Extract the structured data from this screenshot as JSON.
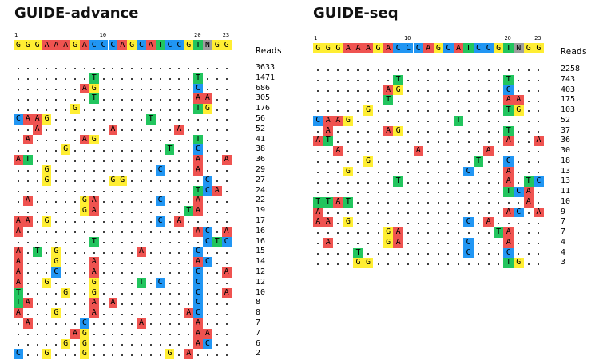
{
  "colors": {
    "A": "#ef5350",
    "C": "#2196f3",
    "G": "#ffee33",
    "T": "#22c55e",
    "N": "#9e9e9e"
  },
  "reference": "GGGAAAGACCCAGCATCCGTNGG",
  "ruler": [
    "1",
    "10",
    "20",
    "23"
  ],
  "reads_label": "Reads",
  "panels": [
    {
      "title": "GUIDE-advance",
      "rows": [
        {
          "reads": "3633",
          "muts": []
        },
        {
          "reads": "1471",
          "muts": [
            [
              8,
              "T"
            ],
            [
              19,
              "T"
            ]
          ]
        },
        {
          "reads": "686",
          "muts": [
            [
              7,
              "A"
            ],
            [
              8,
              "G"
            ],
            [
              19,
              "C"
            ]
          ]
        },
        {
          "reads": "305",
          "muts": [
            [
              8,
              "T"
            ],
            [
              19,
              "A"
            ],
            [
              20,
              "A"
            ]
          ]
        },
        {
          "reads": "176",
          "muts": [
            [
              6,
              "G"
            ],
            [
              19,
              "T"
            ],
            [
              20,
              "G"
            ]
          ]
        },
        {
          "reads": "56",
          "muts": [
            [
              0,
              "C"
            ],
            [
              1,
              "A"
            ],
            [
              2,
              "A"
            ],
            [
              3,
              "G"
            ],
            [
              14,
              "T"
            ]
          ]
        },
        {
          "reads": "52",
          "muts": [
            [
              2,
              "A"
            ],
            [
              10,
              "A"
            ],
            [
              17,
              "A"
            ]
          ]
        },
        {
          "reads": "41",
          "muts": [
            [
              1,
              "A"
            ],
            [
              7,
              "A"
            ],
            [
              8,
              "G"
            ],
            [
              19,
              "T"
            ]
          ]
        },
        {
          "reads": "38",
          "muts": [
            [
              5,
              "G"
            ],
            [
              16,
              "T"
            ],
            [
              19,
              "C"
            ]
          ]
        },
        {
          "reads": "36",
          "muts": [
            [
              0,
              "A"
            ],
            [
              1,
              "T"
            ],
            [
              19,
              "A"
            ],
            [
              22,
              "A"
            ]
          ]
        },
        {
          "reads": "29",
          "muts": [
            [
              3,
              "G"
            ],
            [
              15,
              "C"
            ],
            [
              19,
              "A"
            ]
          ]
        },
        {
          "reads": "27",
          "muts": [
            [
              3,
              "G"
            ],
            [
              10,
              "G"
            ],
            [
              11,
              "G"
            ],
            [
              20,
              "C"
            ]
          ]
        },
        {
          "reads": "24",
          "muts": [
            [
              19,
              "T"
            ],
            [
              20,
              "C"
            ],
            [
              21,
              "A"
            ]
          ]
        },
        {
          "reads": "22",
          "muts": [
            [
              1,
              "A"
            ],
            [
              7,
              "G"
            ],
            [
              8,
              "A"
            ],
            [
              15,
              "C"
            ],
            [
              19,
              "A"
            ]
          ]
        },
        {
          "reads": "19",
          "muts": [
            [
              7,
              "G"
            ],
            [
              8,
              "A"
            ],
            [
              18,
              "T"
            ],
            [
              19,
              "A"
            ]
          ]
        },
        {
          "reads": "17",
          "muts": [
            [
              0,
              "A"
            ],
            [
              1,
              "A"
            ],
            [
              3,
              "G"
            ],
            [
              15,
              "C"
            ],
            [
              17,
              "A"
            ]
          ]
        },
        {
          "reads": "16",
          "muts": [
            [
              0,
              "A"
            ],
            [
              19,
              "A"
            ],
            [
              20,
              "C"
            ],
            [
              22,
              "A"
            ]
          ]
        },
        {
          "reads": "16",
          "muts": [
            [
              8,
              "T"
            ],
            [
              20,
              "C"
            ],
            [
              21,
              "T"
            ],
            [
              22,
              "C"
            ]
          ]
        },
        {
          "reads": "15",
          "muts": [
            [
              0,
              "A"
            ],
            [
              2,
              "T"
            ],
            [
              4,
              "G"
            ],
            [
              13,
              "A"
            ],
            [
              19,
              "C"
            ]
          ]
        },
        {
          "reads": "14",
          "muts": [
            [
              0,
              "A"
            ],
            [
              4,
              "G"
            ],
            [
              8,
              "A"
            ],
            [
              19,
              "A"
            ],
            [
              20,
              "C"
            ]
          ]
        },
        {
          "reads": "12",
          "muts": [
            [
              0,
              "A"
            ],
            [
              4,
              "C"
            ],
            [
              8,
              "A"
            ],
            [
              19,
              "C"
            ],
            [
              22,
              "A"
            ]
          ]
        },
        {
          "reads": "12",
          "muts": [
            [
              0,
              "A"
            ],
            [
              3,
              "G"
            ],
            [
              8,
              "G"
            ],
            [
              13,
              "T"
            ],
            [
              15,
              "C"
            ],
            [
              19,
              "C"
            ]
          ]
        },
        {
          "reads": "10",
          "muts": [
            [
              0,
              "T"
            ],
            [
              5,
              "G"
            ],
            [
              8,
              "G"
            ],
            [
              19,
              "C"
            ],
            [
              22,
              "A"
            ]
          ]
        },
        {
          "reads": "8",
          "muts": [
            [
              0,
              "T"
            ],
            [
              1,
              "A"
            ],
            [
              8,
              "A"
            ],
            [
              10,
              "A"
            ],
            [
              19,
              "C"
            ]
          ]
        },
        {
          "reads": "8",
          "muts": [
            [
              0,
              "A"
            ],
            [
              4,
              "G"
            ],
            [
              8,
              "A"
            ],
            [
              18,
              "A"
            ],
            [
              19,
              "C"
            ]
          ]
        },
        {
          "reads": "7",
          "muts": [
            [
              1,
              "A"
            ],
            [
              7,
              "C"
            ],
            [
              13,
              "A"
            ],
            [
              19,
              "A"
            ],
            [
              23,
              "C"
            ]
          ]
        },
        {
          "reads": "7",
          "muts": [
            [
              6,
              "A"
            ],
            [
              7,
              "G"
            ],
            [
              19,
              "A"
            ],
            [
              20,
              "A"
            ]
          ]
        },
        {
          "reads": "6",
          "muts": [
            [
              5,
              "G"
            ],
            [
              7,
              "G"
            ],
            [
              19,
              "A"
            ],
            [
              20,
              "C"
            ]
          ]
        },
        {
          "reads": "2",
          "muts": [
            [
              0,
              "C"
            ],
            [
              3,
              "G"
            ],
            [
              7,
              "G"
            ],
            [
              16,
              "G"
            ],
            [
              18,
              "A"
            ]
          ]
        }
      ]
    },
    {
      "title": "GUIDE-seq",
      "rows": [
        {
          "reads": "2258",
          "muts": []
        },
        {
          "reads": "743",
          "muts": [
            [
              8,
              "T"
            ],
            [
              19,
              "T"
            ]
          ]
        },
        {
          "reads": "403",
          "muts": [
            [
              7,
              "A"
            ],
            [
              8,
              "G"
            ],
            [
              19,
              "C"
            ]
          ]
        },
        {
          "reads": "175",
          "muts": [
            [
              7,
              "T"
            ],
            [
              19,
              "A"
            ],
            [
              20,
              "A"
            ]
          ]
        },
        {
          "reads": "103",
          "muts": [
            [
              5,
              "G"
            ],
            [
              19,
              "T"
            ],
            [
              20,
              "G"
            ]
          ]
        },
        {
          "reads": "52",
          "muts": [
            [
              0,
              "C"
            ],
            [
              1,
              "A"
            ],
            [
              2,
              "A"
            ],
            [
              3,
              "G"
            ],
            [
              14,
              "T"
            ]
          ]
        },
        {
          "reads": "37",
          "muts": [
            [
              1,
              "A"
            ],
            [
              7,
              "A"
            ],
            [
              8,
              "G"
            ],
            [
              19,
              "T"
            ]
          ]
        },
        {
          "reads": "36",
          "muts": [
            [
              0,
              "A"
            ],
            [
              1,
              "T"
            ],
            [
              19,
              "A"
            ],
            [
              22,
              "A"
            ]
          ]
        },
        {
          "reads": "30",
          "muts": [
            [
              2,
              "A"
            ],
            [
              10,
              "A"
            ],
            [
              17,
              "A"
            ]
          ]
        },
        {
          "reads": "18",
          "muts": [
            [
              5,
              "G"
            ],
            [
              16,
              "T"
            ],
            [
              19,
              "C"
            ]
          ]
        },
        {
          "reads": "13",
          "muts": [
            [
              3,
              "G"
            ],
            [
              15,
              "C"
            ],
            [
              19,
              "A"
            ]
          ]
        },
        {
          "reads": "13",
          "muts": [
            [
              8,
              "T"
            ],
            [
              19,
              "A"
            ],
            [
              21,
              "T"
            ],
            [
              22,
              "C"
            ]
          ]
        },
        {
          "reads": "11",
          "muts": [
            [
              19,
              "T"
            ],
            [
              20,
              "C"
            ],
            [
              21,
              "A"
            ]
          ]
        },
        {
          "reads": "10",
          "muts": [
            [
              0,
              "T"
            ],
            [
              1,
              "T"
            ],
            [
              2,
              "A"
            ],
            [
              3,
              "T"
            ],
            [
              21,
              "A"
            ]
          ]
        },
        {
          "reads": "9",
          "muts": [
            [
              0,
              "A"
            ],
            [
              19,
              "A"
            ],
            [
              20,
              "C"
            ],
            [
              22,
              "A"
            ]
          ]
        },
        {
          "reads": "7",
          "muts": [
            [
              0,
              "A"
            ],
            [
              1,
              "A"
            ],
            [
              3,
              "G"
            ],
            [
              15,
              "C"
            ],
            [
              17,
              "A"
            ]
          ]
        },
        {
          "reads": "7",
          "muts": [
            [
              7,
              "G"
            ],
            [
              8,
              "A"
            ],
            [
              18,
              "T"
            ],
            [
              19,
              "A"
            ]
          ]
        },
        {
          "reads": "4",
          "muts": [
            [
              1,
              "A"
            ],
            [
              7,
              "G"
            ],
            [
              8,
              "A"
            ],
            [
              15,
              "C"
            ],
            [
              19,
              "A"
            ]
          ]
        },
        {
          "reads": "4",
          "muts": [
            [
              4,
              "T"
            ],
            [
              15,
              "C"
            ],
            [
              19,
              "C"
            ]
          ]
        },
        {
          "reads": "3",
          "muts": [
            [
              4,
              "G"
            ],
            [
              5,
              "G"
            ],
            [
              19,
              "T"
            ],
            [
              20,
              "G"
            ]
          ]
        }
      ]
    }
  ]
}
